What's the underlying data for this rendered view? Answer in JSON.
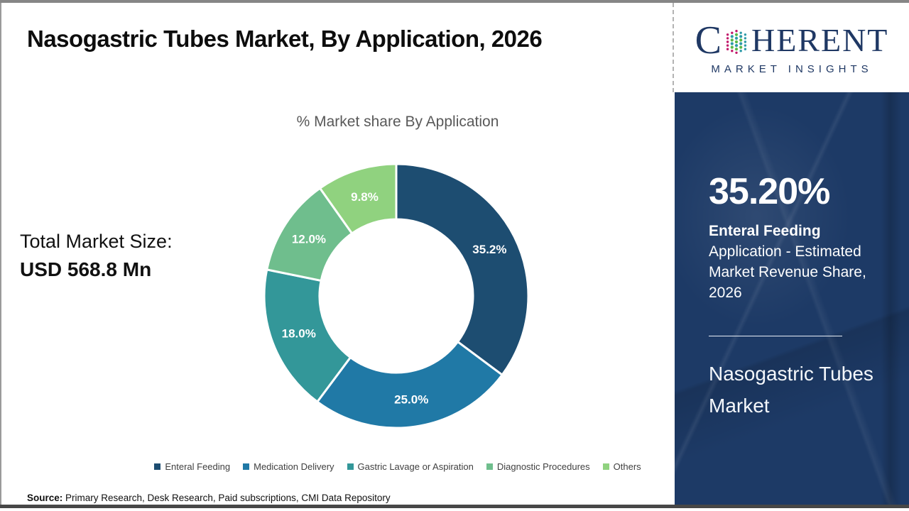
{
  "header": {
    "title": "Nasogastric Tubes Market, By Application, 2026",
    "logo": {
      "brand_first_letter": "C",
      "brand_rest": "HERENT",
      "tagline": "MARKET INSIGHTS"
    }
  },
  "main": {
    "total_market_label": "Total Market Size:",
    "total_market_value": "USD 568.8 Mn",
    "source_label": "Source:",
    "source_text": " Primary Research, Desk Research, Paid subscriptions, CMI Data Repository"
  },
  "sidebar": {
    "highlight_value": "35.20%",
    "highlight_title": "Enteral Feeding",
    "highlight_desc": "Application - Estimated Market Revenue Share, 2026",
    "report_title": "Nasogastric Tubes Market",
    "background_color": "#1d3a66"
  },
  "chart_data": {
    "type": "pie",
    "subtype": "donut",
    "title": "% Market share By Application",
    "categories": [
      "Enteral Feeding",
      "Medication Delivery",
      "Gastric Lavage or Aspiration",
      "Diagnostic Procedures",
      "Others"
    ],
    "values": [
      35.2,
      25.0,
      18.0,
      12.0,
      9.8
    ],
    "labels": [
      "35.2%",
      "25.0%",
      "18.0%",
      "12.0%",
      "9.8%"
    ],
    "colors": [
      "#1d4d71",
      "#2079a6",
      "#339799",
      "#6fbe8d",
      "#90d27f"
    ],
    "start_angle_deg": 0,
    "direction": "clockwise",
    "outer_radius": 186,
    "inner_radius": 108,
    "label_radius": 147,
    "segment_gap_color": "#ffffff",
    "legend_position": "bottom"
  }
}
